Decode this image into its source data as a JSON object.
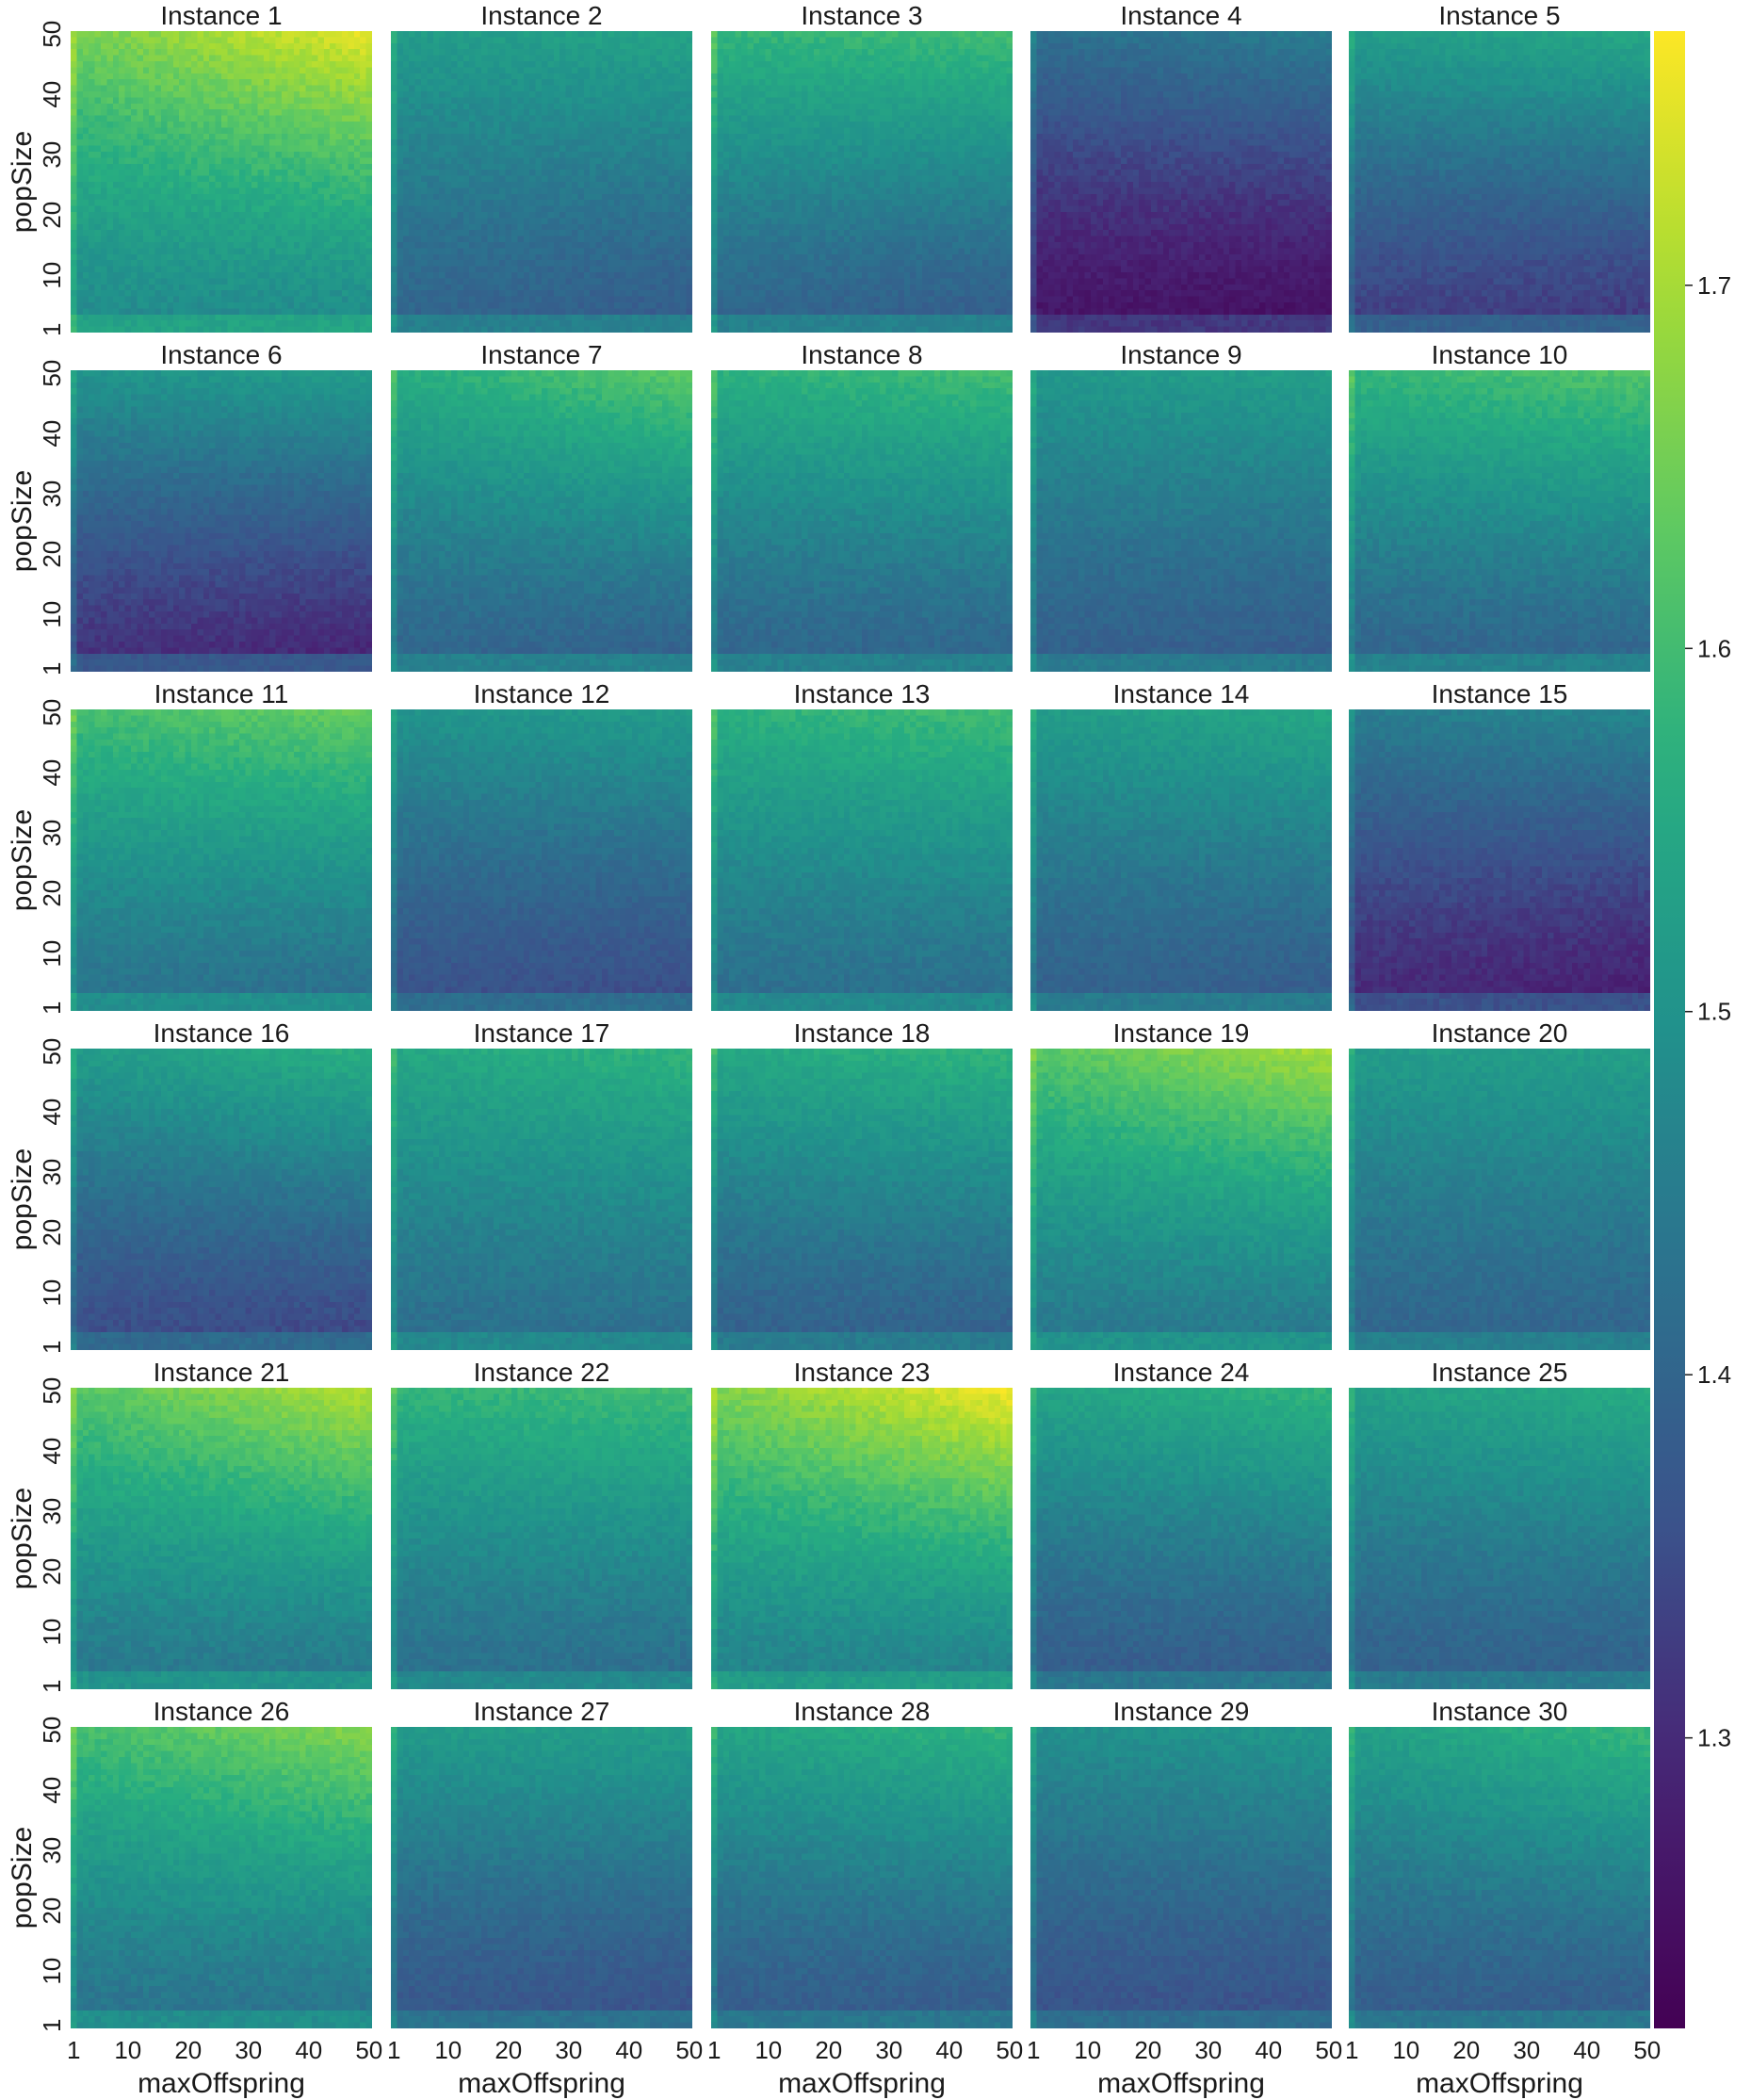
{
  "chart_data": {
    "type": "heatmap",
    "grid": {
      "rows": 6,
      "cols": 5
    },
    "xlabel": "maxOffspring",
    "ylabel": "popSize",
    "x_ticks": [
      "1",
      "10",
      "20",
      "30",
      "40",
      "50"
    ],
    "y_ticks": [
      "1",
      "10",
      "20",
      "30",
      "40",
      "50"
    ],
    "x_range": [
      1,
      50
    ],
    "y_range": [
      1,
      50
    ],
    "cells_per_side": 50,
    "colormap": "viridis",
    "colorbar": {
      "ticks": [
        "1.3",
        "1.4",
        "1.5",
        "1.6",
        "1.7"
      ],
      "range": [
        1.22,
        1.77
      ]
    },
    "panels": [
      {
        "title": "Instance 1",
        "bottom_left": 1.48,
        "bottom_right": 1.48,
        "top_left": 1.65,
        "top_right": 1.75,
        "noise": 0.018
      },
      {
        "title": "Instance 2",
        "bottom_left": 1.4,
        "bottom_right": 1.38,
        "top_left": 1.52,
        "top_right": 1.54,
        "noise": 0.015
      },
      {
        "title": "Instance 3",
        "bottom_left": 1.4,
        "bottom_right": 1.38,
        "top_left": 1.58,
        "top_right": 1.6,
        "noise": 0.015
      },
      {
        "title": "Instance 4",
        "bottom_left": 1.26,
        "bottom_right": 1.25,
        "top_left": 1.42,
        "top_right": 1.45,
        "noise": 0.015
      },
      {
        "title": "Instance 5",
        "bottom_left": 1.33,
        "bottom_right": 1.32,
        "top_left": 1.52,
        "top_right": 1.55,
        "noise": 0.015
      },
      {
        "title": "Instance 6",
        "bottom_left": 1.31,
        "bottom_right": 1.29,
        "top_left": 1.5,
        "top_right": 1.52,
        "noise": 0.015
      },
      {
        "title": "Instance 7",
        "bottom_left": 1.4,
        "bottom_right": 1.39,
        "top_left": 1.56,
        "top_right": 1.63,
        "noise": 0.016
      },
      {
        "title": "Instance 8",
        "bottom_left": 1.4,
        "bottom_right": 1.4,
        "top_left": 1.57,
        "top_right": 1.6,
        "noise": 0.016
      },
      {
        "title": "Instance 9",
        "bottom_left": 1.39,
        "bottom_right": 1.38,
        "top_left": 1.51,
        "top_right": 1.53,
        "noise": 0.015
      },
      {
        "title": "Instance 10",
        "bottom_left": 1.4,
        "bottom_right": 1.4,
        "top_left": 1.58,
        "top_right": 1.62,
        "noise": 0.016
      },
      {
        "title": "Instance 11",
        "bottom_left": 1.43,
        "bottom_right": 1.42,
        "top_left": 1.6,
        "top_right": 1.64,
        "noise": 0.016
      },
      {
        "title": "Instance 12",
        "bottom_left": 1.36,
        "bottom_right": 1.35,
        "top_left": 1.5,
        "top_right": 1.52,
        "noise": 0.015
      },
      {
        "title": "Instance 13",
        "bottom_left": 1.42,
        "bottom_right": 1.42,
        "top_left": 1.57,
        "top_right": 1.6,
        "noise": 0.016
      },
      {
        "title": "Instance 14",
        "bottom_left": 1.39,
        "bottom_right": 1.38,
        "top_left": 1.52,
        "top_right": 1.55,
        "noise": 0.015
      },
      {
        "title": "Instance 15",
        "bottom_left": 1.3,
        "bottom_right": 1.28,
        "top_left": 1.45,
        "top_right": 1.47,
        "noise": 0.015
      },
      {
        "title": "Instance 16",
        "bottom_left": 1.35,
        "bottom_right": 1.34,
        "top_left": 1.52,
        "top_right": 1.57,
        "noise": 0.016
      },
      {
        "title": "Instance 17",
        "bottom_left": 1.42,
        "bottom_right": 1.42,
        "top_left": 1.55,
        "top_right": 1.58,
        "noise": 0.016
      },
      {
        "title": "Instance 18",
        "bottom_left": 1.39,
        "bottom_right": 1.39,
        "top_left": 1.55,
        "top_right": 1.58,
        "noise": 0.016
      },
      {
        "title": "Instance 19",
        "bottom_left": 1.44,
        "bottom_right": 1.44,
        "top_left": 1.62,
        "top_right": 1.7,
        "noise": 0.017
      },
      {
        "title": "Instance 20",
        "bottom_left": 1.4,
        "bottom_right": 1.4,
        "top_left": 1.52,
        "top_right": 1.53,
        "noise": 0.015
      },
      {
        "title": "Instance 21",
        "bottom_left": 1.44,
        "bottom_right": 1.44,
        "top_left": 1.62,
        "top_right": 1.71,
        "noise": 0.017
      },
      {
        "title": "Instance 22",
        "bottom_left": 1.42,
        "bottom_right": 1.42,
        "top_left": 1.58,
        "top_right": 1.6,
        "noise": 0.016
      },
      {
        "title": "Instance 23",
        "bottom_left": 1.46,
        "bottom_right": 1.46,
        "top_left": 1.66,
        "top_right": 1.76,
        "noise": 0.018
      },
      {
        "title": "Instance 24",
        "bottom_left": 1.38,
        "bottom_right": 1.38,
        "top_left": 1.54,
        "top_right": 1.58,
        "noise": 0.016
      },
      {
        "title": "Instance 25",
        "bottom_left": 1.39,
        "bottom_right": 1.39,
        "top_left": 1.53,
        "top_right": 1.56,
        "noise": 0.015
      },
      {
        "title": "Instance 26",
        "bottom_left": 1.43,
        "bottom_right": 1.43,
        "top_left": 1.6,
        "top_right": 1.67,
        "noise": 0.017
      },
      {
        "title": "Instance 27",
        "bottom_left": 1.37,
        "bottom_right": 1.36,
        "top_left": 1.52,
        "top_right": 1.53,
        "noise": 0.015
      },
      {
        "title": "Instance 28",
        "bottom_left": 1.38,
        "bottom_right": 1.38,
        "top_left": 1.54,
        "top_right": 1.58,
        "noise": 0.016
      },
      {
        "title": "Instance 29",
        "bottom_left": 1.36,
        "bottom_right": 1.36,
        "top_left": 1.49,
        "top_right": 1.51,
        "noise": 0.015
      },
      {
        "title": "Instance 30",
        "bottom_left": 1.38,
        "bottom_right": 1.38,
        "top_left": 1.53,
        "top_right": 1.59,
        "noise": 0.016
      }
    ]
  }
}
